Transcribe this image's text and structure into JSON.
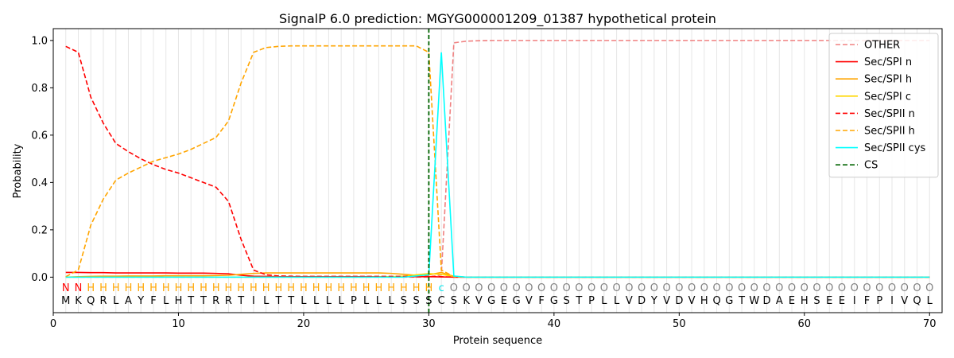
{
  "chart_data": {
    "type": "line",
    "title": "SignalP 6.0 prediction: MGYG000001209_01387 hypothetical protein",
    "xlabel": "Protein sequence",
    "ylabel": "Probability",
    "xlim": [
      0,
      71
    ],
    "ylim": [
      -0.15,
      1.05
    ],
    "x_ticks": [
      "0",
      "10",
      "20",
      "30",
      "40",
      "50",
      "60",
      "70"
    ],
    "y_ticks": [
      "0.0",
      "0.2",
      "0.4",
      "0.6",
      "0.8",
      "1.0"
    ],
    "sequence": "MKQRLAYFLHTTRRTILTTLLLLPLLLSSSCSKVGEGVFGSTPLLVDYVDVHQGTWDAEHSEEIFPIVQL",
    "region_labels": "NNHHHHHHHHHHHHHHHHHHHHHHHHHHHHCOOOOOOOOOOOOOOOOOOOOOOOOOOOOOOOOOOOOOOO",
    "region_colors": {
      "N": "#ff0000",
      "H": "#ffa500",
      "C": "#00e5ee",
      "O": "#808080"
    },
    "cleavage_site": 30,
    "legend_position": "top-right",
    "grid": "vertical lines at each residue",
    "series": [
      {
        "name": "OTHER",
        "color": "#f08080",
        "dash": "dashed",
        "values": [
          0,
          0,
          0,
          0,
          0,
          0,
          0,
          0,
          0,
          0,
          0,
          0,
          0,
          0,
          0,
          0,
          0,
          0,
          0,
          0,
          0,
          0,
          0,
          0,
          0,
          0,
          0,
          0,
          0,
          0,
          0.01,
          0.99,
          0.997,
          0.999,
          1,
          1,
          1,
          1,
          1,
          1,
          1,
          1,
          1,
          1,
          1,
          1,
          1,
          1,
          1,
          1,
          1,
          1,
          1,
          1,
          1,
          1,
          1,
          1,
          1,
          1,
          1,
          1,
          1,
          1,
          1,
          1,
          1,
          1,
          1,
          1
        ]
      },
      {
        "name": "Sec/SPI n",
        "color": "#ff0000",
        "dash": "solid",
        "values": [
          0.02,
          0.02,
          0.019,
          0.019,
          0.018,
          0.018,
          0.018,
          0.018,
          0.018,
          0.017,
          0.017,
          0.017,
          0.016,
          0.014,
          0.008,
          0.004,
          0.003,
          0.002,
          0.002,
          0.002,
          0.002,
          0.002,
          0.002,
          0.002,
          0.002,
          0.002,
          0.002,
          0.002,
          0.002,
          0.002,
          0.001,
          0,
          0,
          0,
          0,
          0,
          0,
          0,
          0,
          0,
          0,
          0,
          0,
          0,
          0,
          0,
          0,
          0,
          0,
          0,
          0,
          0,
          0,
          0,
          0,
          0,
          0,
          0,
          0,
          0,
          0,
          0,
          0,
          0,
          0,
          0,
          0,
          0,
          0,
          0
        ]
      },
      {
        "name": "Sec/SPI h",
        "color": "#ffa500",
        "dash": "solid",
        "values": [
          0,
          0.002,
          0.003,
          0.004,
          0.004,
          0.005,
          0.005,
          0.005,
          0.006,
          0.006,
          0.006,
          0.006,
          0.007,
          0.008,
          0.012,
          0.016,
          0.018,
          0.018,
          0.018,
          0.018,
          0.018,
          0.018,
          0.018,
          0.018,
          0.018,
          0.018,
          0.016,
          0.012,
          0.008,
          0.01,
          0.02,
          0.003,
          0,
          0,
          0,
          0,
          0,
          0,
          0,
          0,
          0,
          0,
          0,
          0,
          0,
          0,
          0,
          0,
          0,
          0,
          0,
          0,
          0,
          0,
          0,
          0,
          0,
          0,
          0,
          0,
          0,
          0,
          0,
          0,
          0,
          0,
          0,
          0,
          0,
          0
        ]
      },
      {
        "name": "Sec/SPI c",
        "color": "#ffd700",
        "dash": "solid",
        "values": [
          0,
          0,
          0,
          0,
          0,
          0,
          0,
          0,
          0,
          0,
          0,
          0,
          0,
          0,
          0,
          0,
          0,
          0,
          0,
          0,
          0,
          0,
          0,
          0,
          0,
          0.001,
          0.002,
          0.004,
          0.01,
          0.015,
          0.012,
          0.003,
          0,
          0,
          0,
          0,
          0,
          0,
          0,
          0,
          0,
          0,
          0,
          0,
          0,
          0,
          0,
          0,
          0,
          0,
          0,
          0,
          0,
          0,
          0,
          0,
          0,
          0,
          0,
          0,
          0,
          0,
          0,
          0,
          0,
          0,
          0,
          0,
          0,
          0
        ]
      },
      {
        "name": "Sec/SPII n",
        "color": "#ff0000",
        "dash": "dashed",
        "values": [
          0.975,
          0.95,
          0.76,
          0.65,
          0.565,
          0.53,
          0.5,
          0.475,
          0.455,
          0.44,
          0.42,
          0.4,
          0.38,
          0.32,
          0.16,
          0.03,
          0.01,
          0.005,
          0.004,
          0.003,
          0.003,
          0.003,
          0.003,
          0.003,
          0.003,
          0.003,
          0.003,
          0.003,
          0.003,
          0.003,
          0.002,
          0,
          0,
          0,
          0,
          0,
          0,
          0,
          0,
          0,
          0,
          0,
          0,
          0,
          0,
          0,
          0,
          0,
          0,
          0,
          0,
          0,
          0,
          0,
          0,
          0,
          0,
          0,
          0,
          0,
          0,
          0,
          0,
          0,
          0,
          0,
          0,
          0,
          0,
          0
        ]
      },
      {
        "name": "Sec/SPII h",
        "color": "#ffa500",
        "dash": "dashed",
        "values": [
          0.002,
          0.03,
          0.22,
          0.33,
          0.41,
          0.44,
          0.465,
          0.49,
          0.505,
          0.52,
          0.54,
          0.565,
          0.59,
          0.66,
          0.82,
          0.95,
          0.97,
          0.975,
          0.977,
          0.977,
          0.977,
          0.977,
          0.977,
          0.977,
          0.977,
          0.977,
          0.977,
          0.977,
          0.977,
          0.95,
          0.03,
          0.002,
          0,
          0,
          0,
          0,
          0,
          0,
          0,
          0,
          0,
          0,
          0,
          0,
          0,
          0,
          0,
          0,
          0,
          0,
          0,
          0,
          0,
          0,
          0,
          0,
          0,
          0,
          0,
          0,
          0,
          0,
          0,
          0,
          0,
          0,
          0,
          0,
          0,
          0
        ]
      },
      {
        "name": "Sec/SPII cys",
        "color": "#00ffff",
        "dash": "solid",
        "values": [
          0,
          0,
          0,
          0,
          0,
          0,
          0,
          0,
          0,
          0,
          0,
          0,
          0,
          0,
          0,
          0,
          0,
          0,
          0,
          0,
          0,
          0,
          0,
          0,
          0,
          0,
          0,
          0,
          0.005,
          0.01,
          0.95,
          0.005,
          0,
          0,
          0,
          0,
          0,
          0,
          0,
          0,
          0,
          0,
          0,
          0,
          0,
          0,
          0,
          0,
          0,
          0,
          0,
          0,
          0,
          0,
          0,
          0,
          0,
          0,
          0,
          0,
          0,
          0,
          0,
          0,
          0,
          0,
          0,
          0,
          0,
          0
        ]
      },
      {
        "name": "CS",
        "color": "#006400",
        "dash": "dashed",
        "values": []
      }
    ]
  }
}
